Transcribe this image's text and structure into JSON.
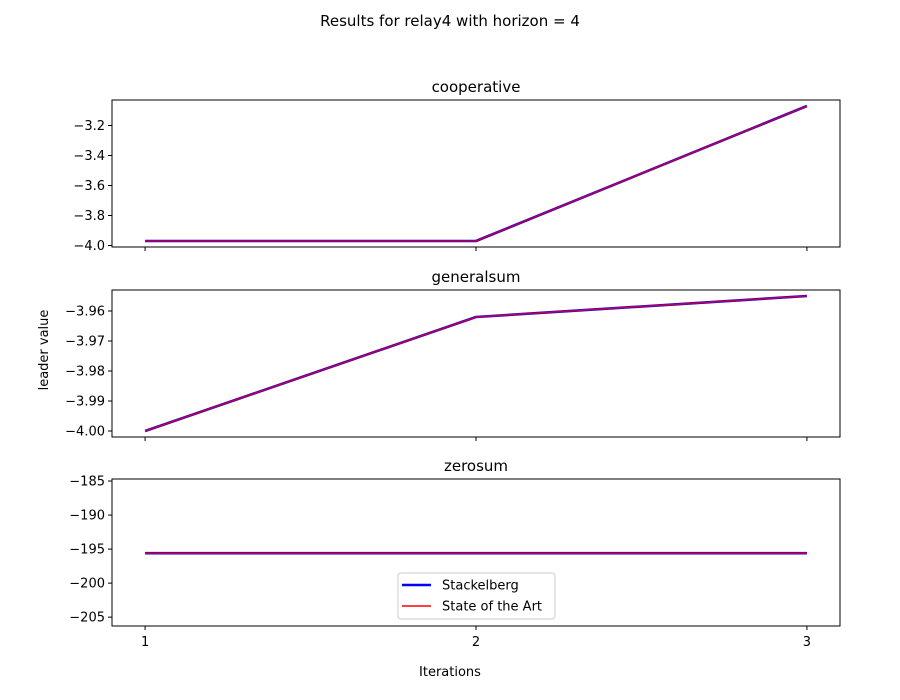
{
  "figure": {
    "title": "Results for relay4 with horizon = 4",
    "xlabel": "Iterations",
    "ylabel": "leader value"
  },
  "chart_data": [
    {
      "type": "line",
      "title": "cooperative",
      "x": [
        1,
        2,
        3
      ],
      "xticks": [
        1,
        2,
        3
      ],
      "xlim": [
        0.9,
        3.1
      ],
      "ylim": [
        -4.01,
        -3.03
      ],
      "yticks": [
        -4.0,
        -3.8,
        -3.6,
        -3.4,
        -3.2
      ],
      "ytick_labels": [
        "−4.0",
        "−3.8",
        "−3.6",
        "−3.4",
        "−3.2"
      ],
      "series": [
        {
          "name": "Stackelberg",
          "color": "#0000ff",
          "values": [
            -3.97,
            -3.97,
            -3.07
          ]
        },
        {
          "name": "State of the Art",
          "color": "#ff0000",
          "values": [
            -3.97,
            -3.97,
            -3.07
          ]
        }
      ]
    },
    {
      "type": "line",
      "title": "generalsum",
      "x": [
        1,
        2,
        3
      ],
      "xticks": [
        1,
        2,
        3
      ],
      "xlim": [
        0.9,
        3.1
      ],
      "ylim": [
        -4.002,
        -3.953
      ],
      "yticks": [
        -4.0,
        -3.99,
        -3.98,
        -3.97,
        -3.96
      ],
      "ytick_labels": [
        "−4.00",
        "−3.99",
        "−3.98",
        "−3.97",
        "−3.96"
      ],
      "series": [
        {
          "name": "Stackelberg",
          "color": "#0000ff",
          "values": [
            -4.0,
            -3.962,
            -3.955
          ]
        },
        {
          "name": "State of the Art",
          "color": "#ff0000",
          "values": [
            -4.0,
            -3.962,
            -3.955
          ]
        }
      ]
    },
    {
      "type": "line",
      "title": "zerosum",
      "x": [
        1,
        2,
        3
      ],
      "xticks": [
        1,
        2,
        3
      ],
      "xtick_labels": [
        "1",
        "2",
        "3"
      ],
      "xlim": [
        0.9,
        3.1
      ],
      "ylim": [
        -206.3,
        -184.7
      ],
      "yticks": [
        -205,
        -200,
        -195,
        -190,
        -185
      ],
      "ytick_labels": [
        "−205",
        "−200",
        "−195",
        "−190",
        "−185"
      ],
      "series": [
        {
          "name": "Stackelberg",
          "color": "#0000ff",
          "values": [
            -195.6,
            -195.6,
            -195.6
          ]
        },
        {
          "name": "State of the Art",
          "color": "#ff0000",
          "values": [
            -195.6,
            -195.6,
            -195.6
          ]
        }
      ],
      "legend": {
        "placement": "lower-center",
        "entries": [
          {
            "label": "Stackelberg",
            "color": "#0000ff"
          },
          {
            "label": "State of the Art",
            "color": "#ff0000"
          }
        ]
      }
    }
  ]
}
